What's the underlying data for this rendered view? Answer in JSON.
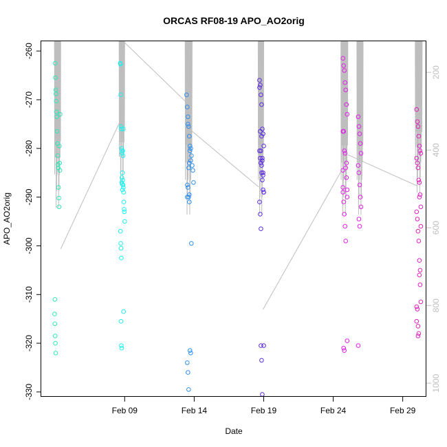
{
  "chart_data": {
    "type": "scatter",
    "title": "ORCAS RF08-19 APO_AO2orig",
    "xlabel": "Date",
    "ylabel": "APO_AO2orig",
    "x_ticks": [
      "Feb 09",
      "Feb 14",
      "Feb 19",
      "Feb 24",
      "Feb 29"
    ],
    "x_tick_day": [
      9,
      14,
      19,
      24,
      29
    ],
    "xlim_day": [
      3.0,
      30.7
    ],
    "y_ticks": [
      -260,
      -270,
      -280,
      -290,
      -300,
      -310,
      -320,
      -330
    ],
    "ylim": [
      -331,
      -258
    ],
    "y2_ticks": [
      200,
      400,
      600,
      800,
      1000
    ],
    "y2lim": [
      1035,
      120
    ],
    "y2_color": "#bebebe",
    "grid": false,
    "legend": "none",
    "series": [
      {
        "color": "#2de8b8",
        "x": [
          4.0,
          4.02,
          4.04,
          4.06,
          4.08,
          4.1,
          4.12,
          4.14,
          4.16,
          4.18,
          4.2,
          4.22,
          4.24,
          4.26,
          4.28,
          4.3,
          4.32,
          4.34,
          4.36,
          3.96,
          3.98,
          4.0,
          4.02,
          4.04,
          3.98
        ],
        "y": [
          -262.5,
          -265.5,
          -268,
          -268.8,
          -270.3,
          -272.5,
          -273.5,
          -276.5,
          -279,
          -281.5,
          -283.3,
          -284,
          -288,
          -290.2,
          -292,
          -279.5,
          -283,
          -284.5,
          -273,
          -314,
          -316,
          -318.5,
          -320,
          -322,
          -311
        ]
      },
      {
        "color": "#1ef0f0",
        "x": [
          8.68,
          8.7,
          8.72,
          8.74,
          8.76,
          8.78,
          8.8,
          8.82,
          8.84,
          8.86,
          8.88,
          8.9,
          8.92,
          8.94,
          8.96,
          8.98,
          9.0,
          8.7,
          8.72,
          8.74,
          8.76,
          8.78,
          8.8,
          8.82,
          8.84,
          8.86,
          8.88,
          8.9,
          8.92,
          8.74,
          8.76,
          8.78
        ],
        "y": [
          -262.5,
          -262.7,
          -269,
          -275.5,
          -276,
          -280,
          -281,
          -280.5,
          -285,
          -286.5,
          -287.5,
          -288,
          -289,
          -291,
          -292.5,
          -293,
          -295,
          -297,
          -299.5,
          -300.5,
          -302.5,
          -287,
          -286,
          -287.3,
          -288.5,
          -280.5,
          -281.5,
          -276,
          -313.5,
          -315.5,
          -320.5,
          -321
        ]
      },
      {
        "color": "#2b8ef0",
        "x": [
          13.45,
          13.5,
          13.55,
          13.6,
          13.65,
          13.7,
          13.75,
          13.8,
          13.85,
          13.9,
          13.95,
          13.5,
          13.55,
          13.6,
          13.65,
          13.7,
          13.75,
          13.8,
          13.55,
          13.6,
          13.65,
          13.7,
          13.75,
          13.5,
          13.55,
          13.6,
          13.65,
          13.5
        ],
        "y": [
          -269,
          -271.5,
          -273.5,
          -275.5,
          -277.5,
          -279.5,
          -280,
          -281.5,
          -283.5,
          -284.5,
          -287,
          -287.5,
          -288,
          -290,
          -291,
          -280.5,
          -282.5,
          -299.5,
          -275,
          -284,
          -289.5,
          -321.5,
          -322,
          -324,
          -326,
          -329.5,
          -283,
          -290
        ]
      },
      {
        "color": "#5a2be0",
        "x": [
          18.7,
          18.75,
          18.8,
          18.85,
          18.9,
          18.95,
          19.0,
          18.7,
          18.75,
          18.8,
          18.85,
          18.9,
          18.95,
          19.0,
          18.7,
          18.75,
          18.8,
          18.85,
          18.9,
          18.95,
          19.0,
          18.75,
          18.8,
          18.85,
          18.9,
          18.95,
          18.7,
          19.0,
          18.8,
          18.85,
          18.9
        ],
        "y": [
          -266,
          -267,
          -269,
          -271,
          -276,
          -277,
          -279.5,
          -280.5,
          -282,
          -283,
          -285,
          -286.5,
          -288.5,
          -289,
          -291,
          -293.5,
          -296.5,
          -277.5,
          -282,
          -285.5,
          -289,
          -276.5,
          -280.5,
          -283.5,
          -282.5,
          -285,
          -267.5,
          -320.5,
          -320.5,
          -323.5,
          -330.5
        ]
      },
      {
        "color": "#e21ee8",
        "x": [
          24.7,
          24.75,
          24.8,
          24.85,
          24.9,
          24.95,
          25.0,
          24.7,
          24.75,
          24.8,
          24.85,
          24.9,
          24.95,
          25.0,
          24.7,
          24.75,
          24.8,
          24.85,
          24.9,
          24.95,
          24.7,
          25.0,
          25.0,
          24.75,
          24.8,
          25.8,
          25.85,
          25.9,
          25.95,
          26.0,
          25.8,
          25.85,
          25.9,
          25.95,
          26.0,
          25.85,
          25.9,
          25.8,
          24.7
        ],
        "y": [
          -261.5,
          -263,
          -264,
          -266.5,
          -268,
          -271,
          -273,
          -276.5,
          -276.5,
          -280.5,
          -281,
          -284,
          -286,
          -288.5,
          -289,
          -291,
          -293.5,
          -296,
          -299,
          -283,
          -284.5,
          -290,
          -319.5,
          -321,
          -321.5,
          -273.5,
          -275.5,
          -277,
          -279,
          -281,
          -283.5,
          -285,
          -287.5,
          -290,
          -292,
          -294.5,
          -296,
          -320.5,
          -288
        ]
      },
      {
        "color": "#e020c0",
        "x": [
          30.0,
          30.05,
          30.1,
          30.15,
          30.2,
          30.25,
          30.3,
          30.0,
          30.05,
          30.1,
          30.15,
          30.2,
          30.25,
          30.3,
          30.0,
          30.05,
          30.1,
          30.15,
          30.2,
          30.25,
          30.3,
          30.0,
          30.05,
          30.1,
          30.15,
          30.2,
          30.25,
          30.3,
          30.0,
          30.1,
          30.2
        ],
        "y": [
          -272,
          -274.5,
          -275.5,
          -277.5,
          -279.5,
          -280.5,
          -281,
          -282,
          -283,
          -284,
          -286.5,
          -287,
          -289.5,
          -292,
          -293,
          -294.5,
          -297,
          -299,
          -306,
          -308,
          -311.5,
          -312.5,
          -313,
          -316.5,
          -318,
          -303,
          -305,
          -296,
          -315.5,
          -318.5,
          -290
        ]
      }
    ]
  }
}
